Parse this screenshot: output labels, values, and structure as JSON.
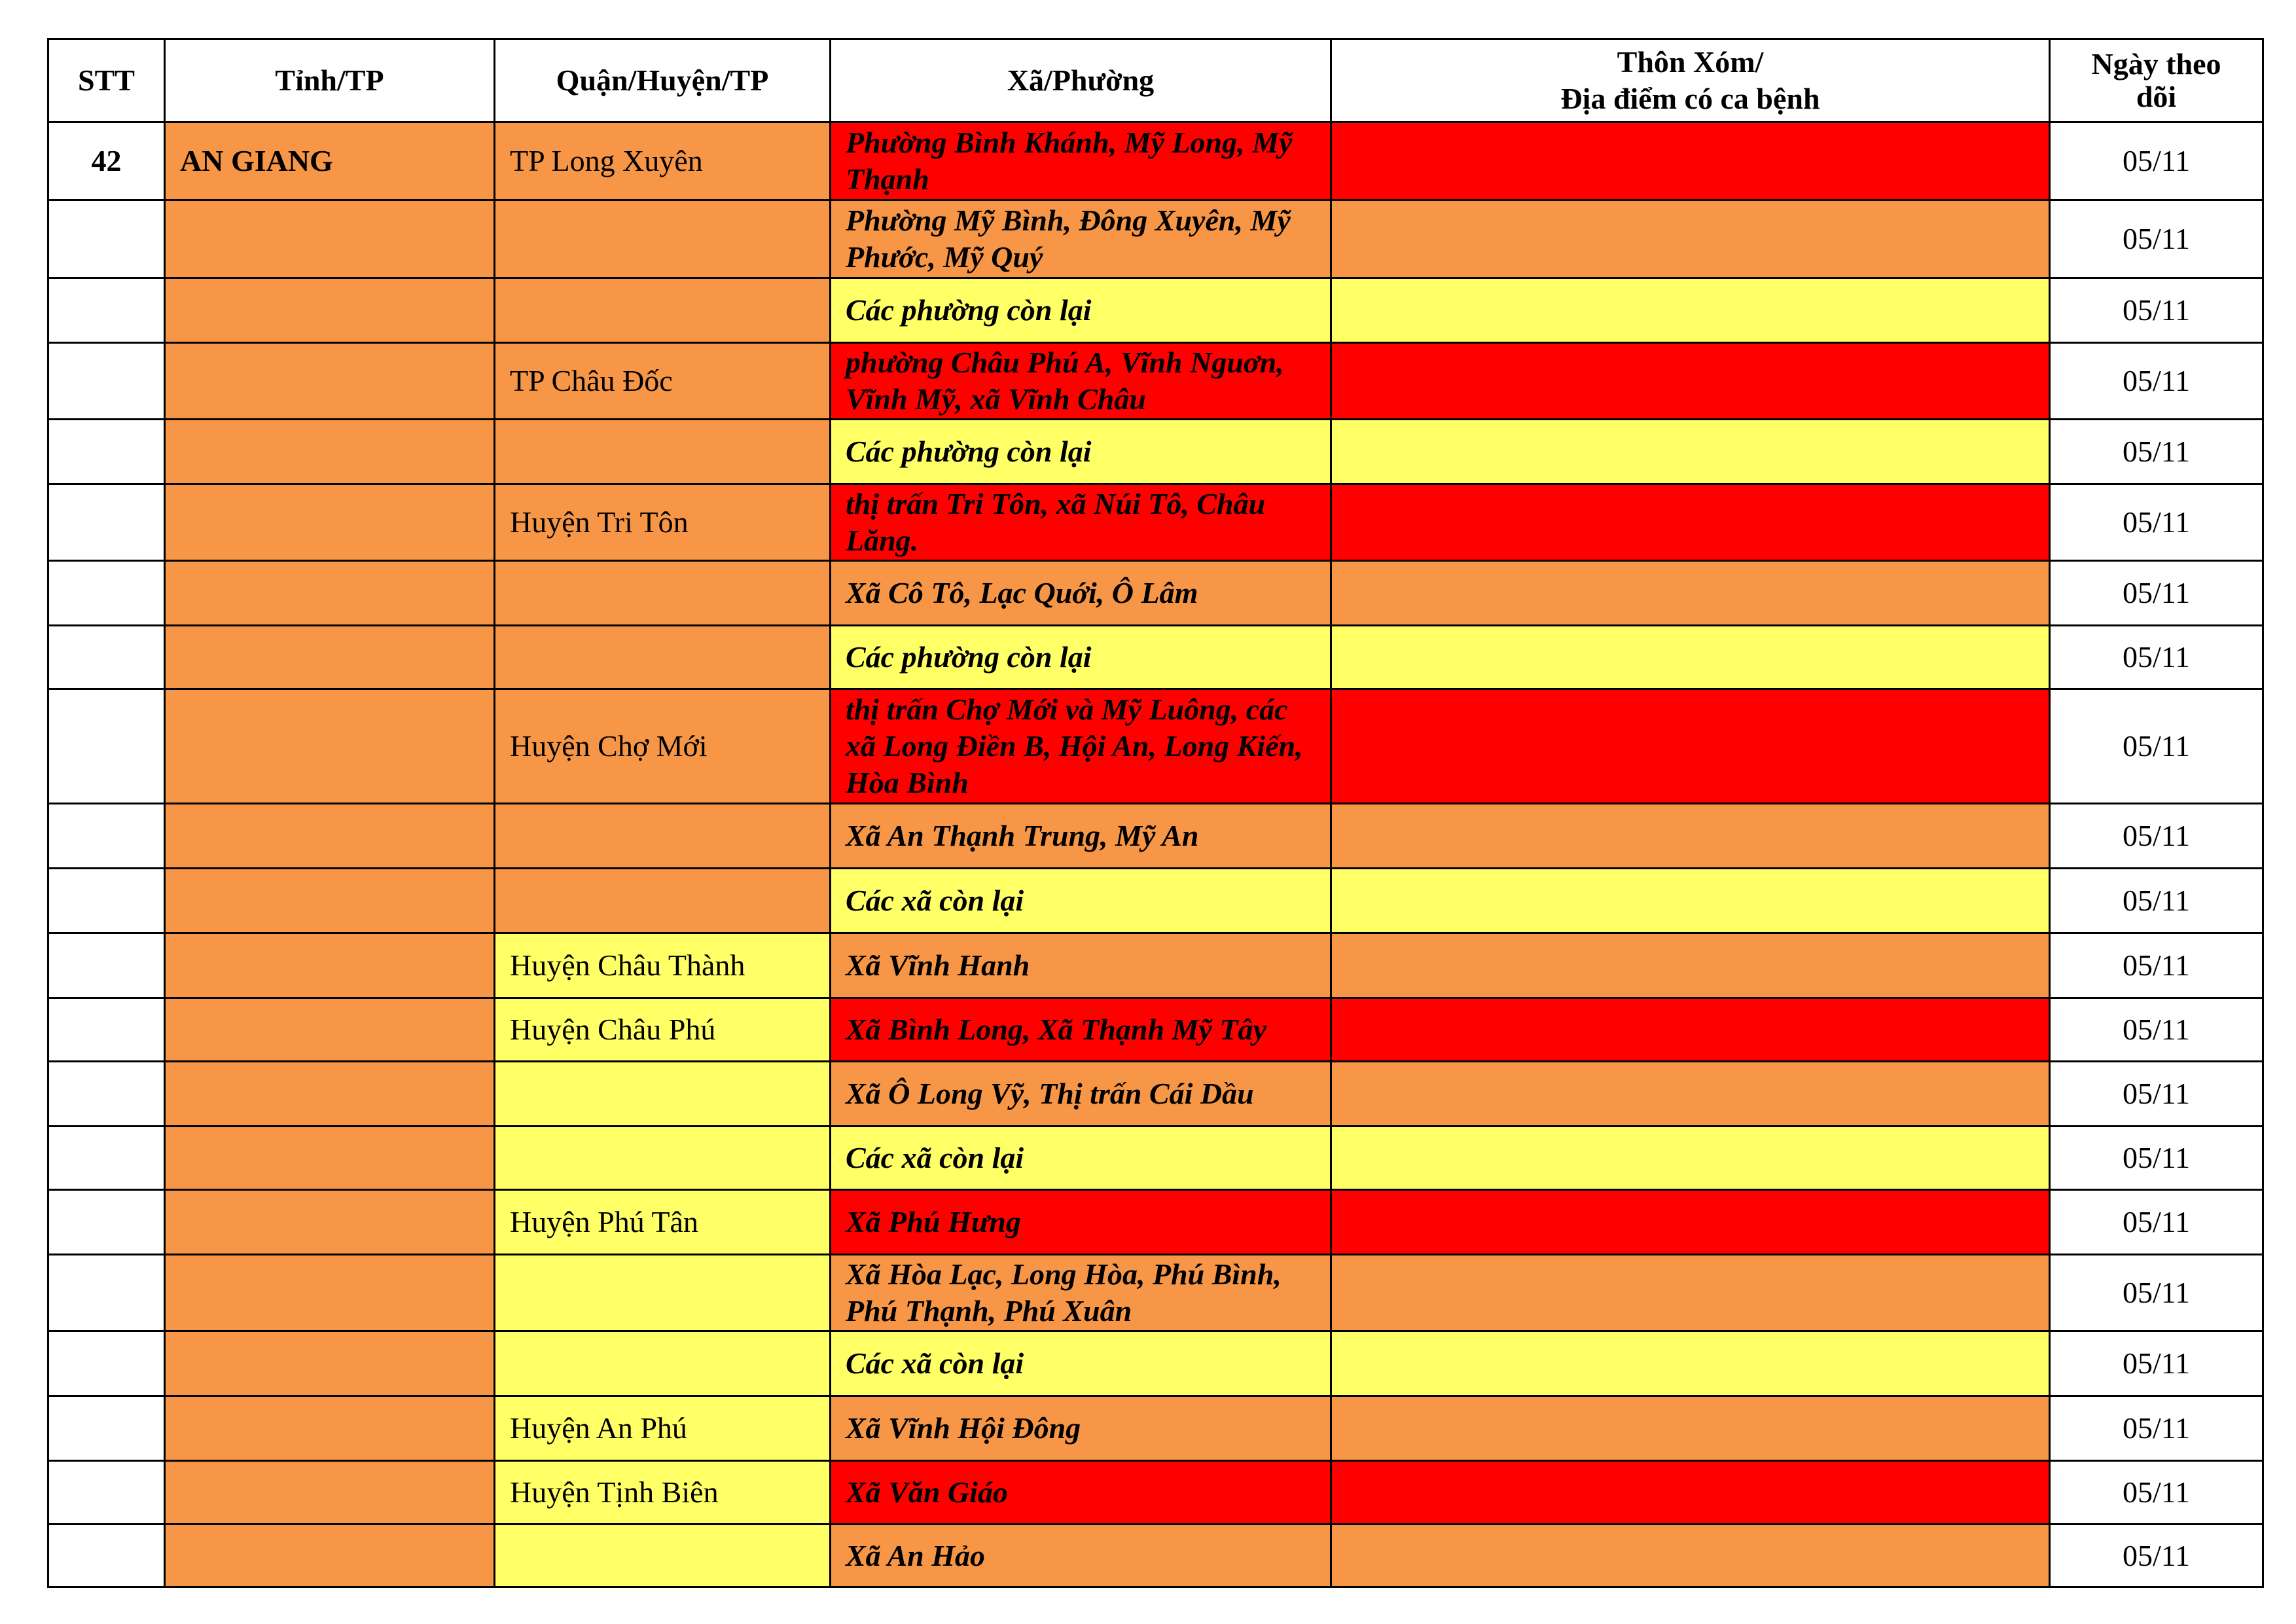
{
  "colors": {
    "red": "#FF0000",
    "orange": "#F79646",
    "yellow": "#FFFF66"
  },
  "headers": {
    "stt": "STT",
    "tinh": "Tỉnh/TP",
    "quan": "Quận/Huyện/TP",
    "xa": "Xã/Phường",
    "thon_line1": "Thôn Xóm/",
    "thon_line2": "Địa điểm có ca bệnh",
    "ngay_line1": "Ngày theo",
    "ngay_line2": "dõi"
  },
  "rows": [
    {
      "stt": "42",
      "tinh": "AN GIANG",
      "quan": "TP Long Xuyên",
      "quan_level": "orange",
      "xa": "Phường Bình Khánh, Mỹ Long, Mỹ Thạnh",
      "level": "red",
      "date": "05/11"
    },
    {
      "stt": "",
      "tinh": "",
      "quan": "",
      "quan_level": "orange",
      "xa": "Phường Mỹ Bình, Đông Xuyên, Mỹ Phước, Mỹ Quý",
      "level": "orange",
      "date": "05/11"
    },
    {
      "stt": "",
      "tinh": "",
      "quan": "",
      "quan_level": "orange",
      "xa": "Các phường còn lại",
      "level": "yellow",
      "date": "05/11"
    },
    {
      "stt": "",
      "tinh": "",
      "quan": "TP Châu Đốc",
      "quan_level": "orange",
      "xa": "phường Châu Phú A, Vĩnh Nguơn, Vĩnh Mỹ, xã Vĩnh Châu",
      "level": "red",
      "date": "05/11"
    },
    {
      "stt": "",
      "tinh": "",
      "quan": "",
      "quan_level": "orange",
      "xa": "Các phường còn lại",
      "level": "yellow",
      "date": "05/11"
    },
    {
      "stt": "",
      "tinh": "",
      "quan": "Huyện Tri Tôn",
      "quan_level": "orange",
      "xa": "thị trấn Tri Tôn, xã Núi Tô, Châu Lăng.",
      "level": "red",
      "date": "05/11"
    },
    {
      "stt": "",
      "tinh": "",
      "quan": "",
      "quan_level": "orange",
      "xa": "Xã Cô Tô, Lạc Quới, Ô Lâm",
      "level": "orange",
      "date": "05/11"
    },
    {
      "stt": "",
      "tinh": "",
      "quan": "",
      "quan_level": "orange",
      "xa": "Các phường còn lại",
      "level": "yellow",
      "date": "05/11"
    },
    {
      "stt": "",
      "tinh": "",
      "quan": "Huyện Chợ Mới",
      "quan_level": "orange",
      "xa": "thị trấn Chợ Mới và Mỹ Luông, các xã Long Điền B, Hội An, Long Kiến, Hòa Bình",
      "level": "red",
      "date": "05/11"
    },
    {
      "stt": "",
      "tinh": "",
      "quan": "",
      "quan_level": "orange",
      "xa": "Xã An Thạnh Trung, Mỹ An",
      "level": "orange",
      "date": "05/11"
    },
    {
      "stt": "",
      "tinh": "",
      "quan": "",
      "quan_level": "orange",
      "xa": "Các xã còn lại",
      "level": "yellow",
      "date": "05/11"
    },
    {
      "stt": "",
      "tinh": "",
      "quan": "Huyện Châu Thành",
      "quan_level": "yellow",
      "xa": "Xã Vĩnh Hanh",
      "level": "orange",
      "date": "05/11"
    },
    {
      "stt": "",
      "tinh": "",
      "quan": "Huyện Châu Phú",
      "quan_level": "yellow",
      "xa": "Xã Bình Long, Xã Thạnh Mỹ Tây",
      "level": "red",
      "date": "05/11"
    },
    {
      "stt": "",
      "tinh": "",
      "quan": "",
      "quan_level": "yellow",
      "xa": "Xã Ô Long Vỹ, Thị trấn Cái Dầu",
      "level": "orange",
      "date": "05/11"
    },
    {
      "stt": "",
      "tinh": "",
      "quan": "",
      "quan_level": "yellow",
      "xa": "Các xã còn lại",
      "level": "yellow",
      "date": "05/11"
    },
    {
      "stt": "",
      "tinh": "",
      "quan": "Huyện Phú Tân",
      "quan_level": "yellow",
      "xa": "Xã Phú Hưng",
      "level": "red",
      "date": "05/11"
    },
    {
      "stt": "",
      "tinh": "",
      "quan": "",
      "quan_level": "yellow",
      "xa": "Xã Hòa Lạc, Long Hòa, Phú Bình, Phú Thạnh, Phú Xuân",
      "level": "orange",
      "date": "05/11"
    },
    {
      "stt": "",
      "tinh": "",
      "quan": "",
      "quan_level": "yellow",
      "xa": "Các xã còn lại",
      "level": "yellow",
      "date": "05/11"
    },
    {
      "stt": "",
      "tinh": "",
      "quan": "Huyện An Phú",
      "quan_level": "yellow",
      "xa": "Xã Vĩnh Hội Đông",
      "level": "orange",
      "date": "05/11"
    },
    {
      "stt": "",
      "tinh": "",
      "quan": "Huyện Tịnh Biên",
      "quan_level": "yellow",
      "xa": "Xã Văn Giáo",
      "level": "red",
      "date": "05/11"
    },
    {
      "stt": "",
      "tinh": "",
      "quan": "",
      "quan_level": "yellow",
      "xa": "Xã An Hảo",
      "level": "orange",
      "date": "05/11"
    }
  ]
}
